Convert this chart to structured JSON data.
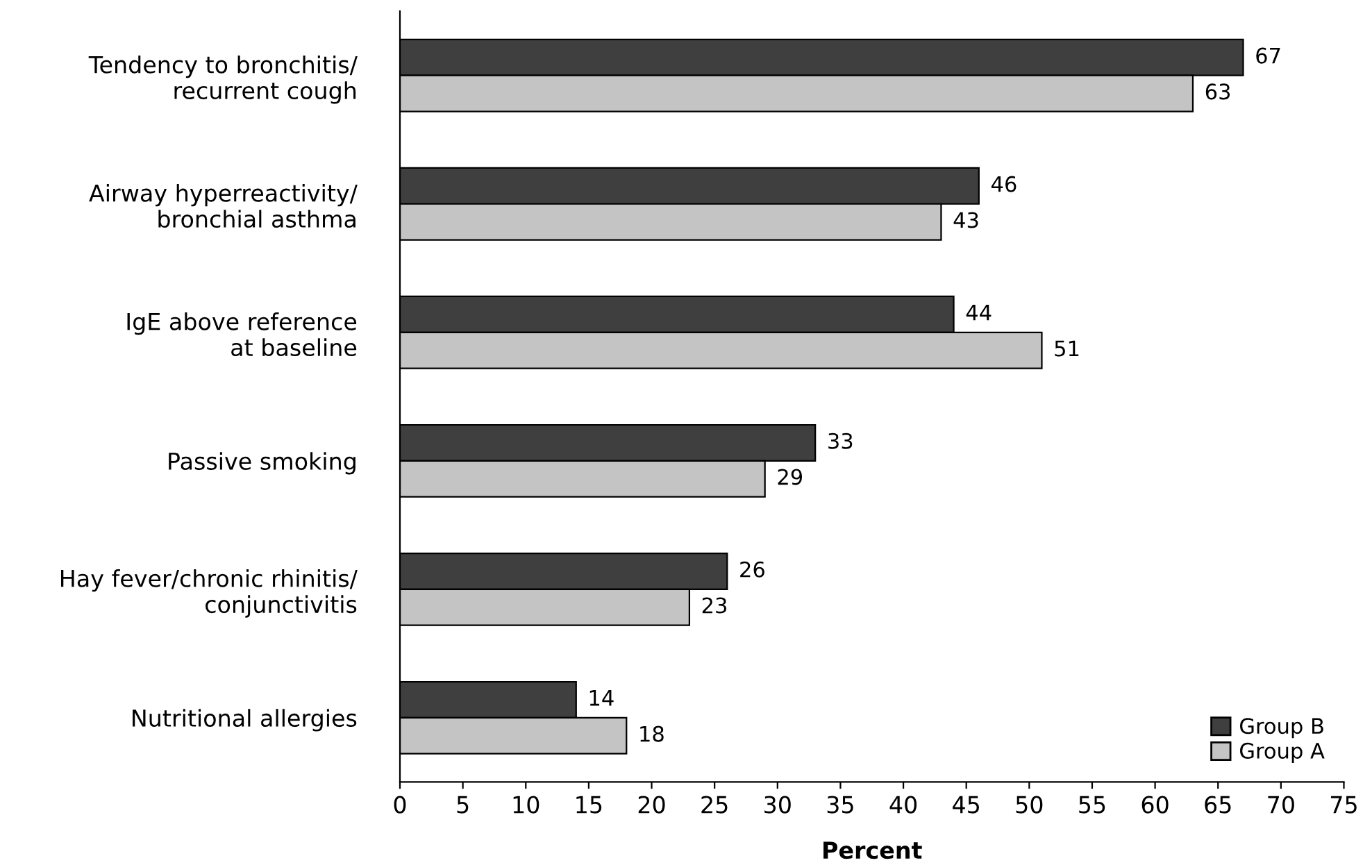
{
  "chart_data": {
    "type": "bar",
    "orientation": "horizontal",
    "categories": [
      "Tendency to bronchitis/\nrecurrent cough",
      "Airway hyperreactivity/\nbronchial asthma",
      "IgE above reference\nat baseline",
      "Passive smoking",
      "Hay fever/chronic rhinitis/\nconjunctivitis",
      "Nutritional allergies"
    ],
    "series": [
      {
        "name": "Group B",
        "color": "#3f3f3f",
        "values": [
          67,
          46,
          44,
          33,
          26,
          14
        ]
      },
      {
        "name": "Group A",
        "color": "#c4c4c4",
        "values": [
          63,
          43,
          51,
          29,
          23,
          18
        ]
      }
    ],
    "xlabel": "Percent",
    "xlim": [
      0,
      75
    ],
    "xticks": [
      0,
      5,
      10,
      15,
      20,
      25,
      30,
      35,
      40,
      45,
      50,
      55,
      60,
      65,
      70,
      75
    ],
    "data_labels": true,
    "legend": "bottom right",
    "grid": false
  }
}
